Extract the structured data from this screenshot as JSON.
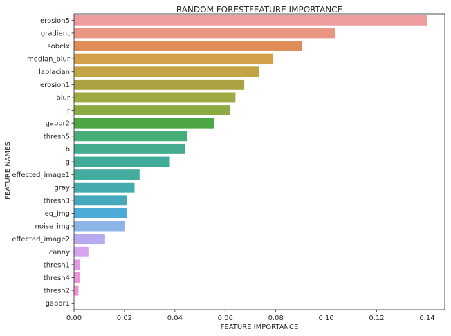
{
  "chart_data": {
    "type": "bar",
    "orientation": "horizontal",
    "title": "RANDOM FORESTFEATURE IMPORTANCE",
    "xlabel": "FEATURE IMPORTANCE",
    "ylabel": "FEATURE NAMES",
    "xlim": [
      0,
      0.147
    ],
    "xticks": [
      0.0,
      0.02,
      0.04,
      0.06,
      0.08,
      0.1,
      0.12,
      0.14
    ],
    "xtick_labels": [
      "0.00",
      "0.02",
      "0.04",
      "0.06",
      "0.08",
      "0.10",
      "0.12",
      "0.14"
    ],
    "grid": false,
    "categories": [
      "erosion5",
      "gradient",
      "sobelx",
      "median_blur",
      "laplacian",
      "erosion1",
      "blur",
      "r",
      "gabor2",
      "thresh5",
      "b",
      "g",
      "effected_image1",
      "gray",
      "thresh3",
      "eq_img",
      "noise_img",
      "effected_image2",
      "canny",
      "thresh1",
      "thresh4",
      "thresh2",
      "gabor1"
    ],
    "values": [
      0.14,
      0.1035,
      0.0905,
      0.079,
      0.0735,
      0.0675,
      0.064,
      0.062,
      0.0555,
      0.045,
      0.044,
      0.038,
      0.026,
      0.024,
      0.021,
      0.021,
      0.02,
      0.0123,
      0.0057,
      0.0025,
      0.0022,
      0.0018,
      0.0
    ],
    "colors": [
      "#ef9ca1",
      "#ea9685",
      "#e08c58",
      "#d29f4a",
      "#c2a444",
      "#aba244",
      "#9ea942",
      "#8bab42",
      "#4ca742",
      "#47ae79",
      "#44ab8e",
      "#42ac9b",
      "#44ab9f",
      "#45aaad",
      "#47a7bb",
      "#4eaad8",
      "#8db4e8",
      "#b9aaef",
      "#d6a3ef",
      "#e29ce4",
      "#ea97d7",
      "#ef95cd",
      "#ef94c6"
    ]
  }
}
